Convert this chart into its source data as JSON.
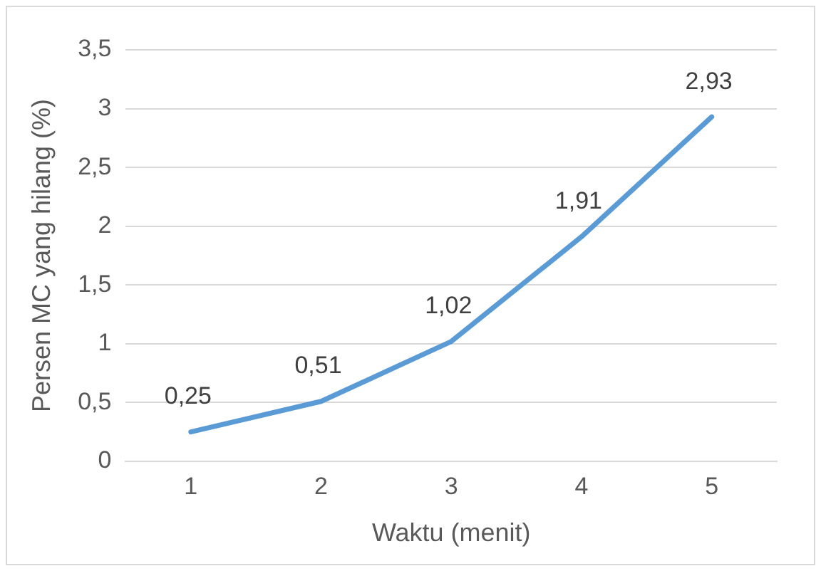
{
  "chart_data": {
    "type": "line",
    "xlabel": "Waktu (menit)",
    "ylabel": "Persen MC yang hilang (%)",
    "categories": [
      "1",
      "2",
      "3",
      "4",
      "5"
    ],
    "series": [
      {
        "color": "#5b9bd5",
        "values": [
          0.25,
          0.51,
          1.02,
          1.91,
          2.93
        ],
        "value_labels": [
          "0,25",
          "0,51",
          "1,02",
          "1,91",
          "2,93"
        ]
      }
    ],
    "ylim": [
      0,
      3.5
    ],
    "yticks": [
      0,
      {
        "value": 0.5,
        "label": "0,5"
      },
      1,
      {
        "value": 1.5,
        "label": "1,5"
      },
      2,
      {
        "value": 2.5,
        "label": "2,5"
      },
      3,
      {
        "value": 3.5,
        "label": "3,5"
      }
    ],
    "grid": "y",
    "legend": false,
    "marker": "none",
    "line_style": "solid"
  }
}
